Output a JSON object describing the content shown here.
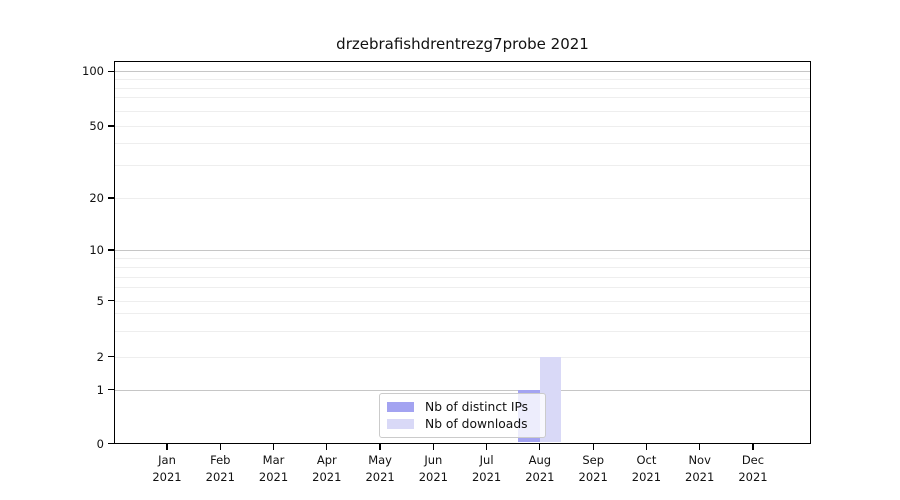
{
  "chart_data": {
    "type": "bar",
    "title": "drzebrafishdrentrezg7probe 2021",
    "xlabel": "",
    "ylabel": "",
    "x_axis": {
      "months": [
        "Jan",
        "Feb",
        "Mar",
        "Apr",
        "May",
        "Jun",
        "Jul",
        "Aug",
        "Sep",
        "Oct",
        "Nov",
        "Dec"
      ],
      "year": "2021"
    },
    "y_axis": {
      "scale": "symlog",
      "ticks": [
        0,
        1,
        2,
        5,
        10,
        20,
        50,
        100
      ],
      "major_gridline_values": [
        1,
        10,
        100
      ],
      "minor_gridline_values": [
        2,
        3,
        4,
        5,
        6,
        7,
        8,
        9,
        20,
        30,
        40,
        50,
        60,
        70,
        80,
        90
      ],
      "ylim": [
        0,
        100
      ]
    },
    "categories": [
      "Jan 2021",
      "Feb 2021",
      "Mar 2021",
      "Apr 2021",
      "May 2021",
      "Jun 2021",
      "Jul 2021",
      "Aug 2021",
      "Sep 2021",
      "Oct 2021",
      "Nov 2021",
      "Dec 2021"
    ],
    "series": [
      {
        "name": "Nb of distinct IPs",
        "color": "#a3a3f1",
        "values": [
          0,
          0,
          0,
          0,
          0,
          0,
          0,
          1,
          0,
          0,
          0,
          0
        ]
      },
      {
        "name": "Nb of downloads",
        "color": "#d9d9f7",
        "values": [
          0,
          0,
          0,
          0,
          0,
          0,
          0,
          2,
          0,
          0,
          0,
          0
        ]
      }
    ],
    "legend": {
      "position": "lower center inside plot",
      "grid": "both"
    },
    "colors": {
      "grid_major": "#c6c6c6",
      "grid_minor": "#eeeeee",
      "spine": "#000000",
      "text": "#111111",
      "background": "#ffffff"
    }
  }
}
